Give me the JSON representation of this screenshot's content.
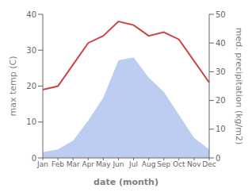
{
  "chart_data": {
    "type": "line",
    "categories": [
      "Jan",
      "Feb",
      "Mar",
      "Apr",
      "May",
      "Jun",
      "Jul",
      "Aug",
      "Sep",
      "Oct",
      "Nov",
      "Dec"
    ],
    "series": [
      {
        "type": "area",
        "axis": "y2",
        "color": "#b0c4ee",
        "values": [
          2,
          3,
          6,
          13,
          21,
          34,
          35,
          28,
          23,
          15,
          7,
          3
        ]
      },
      {
        "type": "line",
        "color": "#cc4444",
        "values": [
          19,
          20,
          26,
          32,
          34,
          38,
          37,
          34,
          35,
          33,
          27,
          21
        ]
      }
    ],
    "xlabel": "date (month)",
    "ylabel": "max temp (C)",
    "y2label": "med. precipitation (kg/m2)",
    "ylim": [
      0,
      40
    ],
    "yticks": [
      0,
      10,
      20,
      30,
      40
    ],
    "y2lim": [
      0,
      50
    ],
    "y2ticks": [
      0,
      10,
      20,
      30,
      40,
      50
    ],
    "grid": false
  }
}
